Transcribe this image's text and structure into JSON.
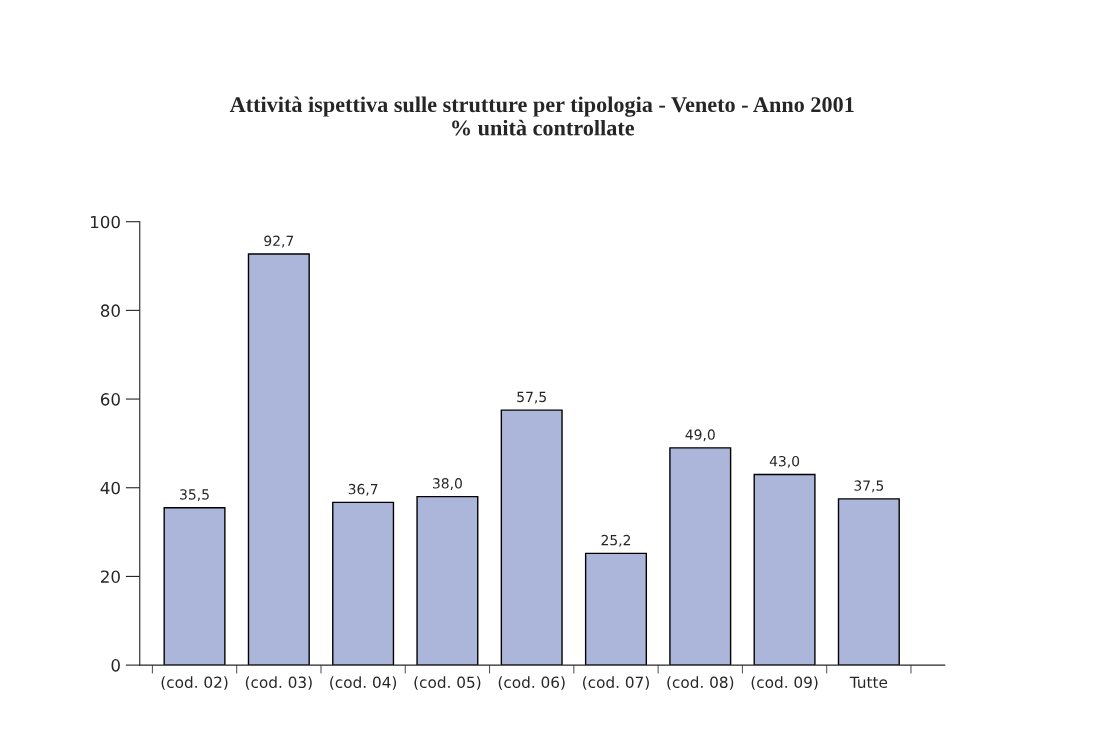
{
  "chart_data": {
    "type": "bar",
    "title": "Attività ispettiva sulle strutture per tipologia - Veneto - Anno 2001\n% unità controllate",
    "categories": [
      "(cod. 02)",
      "(cod. 03)",
      "(cod. 04)",
      "(cod. 05)",
      "(cod. 06)",
      "(cod. 07)",
      "(cod. 08)",
      "(cod. 09)",
      "Tutte"
    ],
    "values": [
      35.5,
      92.7,
      36.7,
      38.0,
      57.5,
      25.2,
      49.0,
      43.0,
      37.5
    ],
    "value_labels": [
      "35,5",
      "92,7",
      "36,7",
      "38,0",
      "57,5",
      "25,2",
      "49,0",
      "43,0",
      "37,5"
    ],
    "color": "#abb6da",
    "ylim": [
      0,
      100
    ],
    "yticks": [
      0,
      20,
      40,
      60,
      80,
      100
    ],
    "grid": false,
    "legend": false
  }
}
